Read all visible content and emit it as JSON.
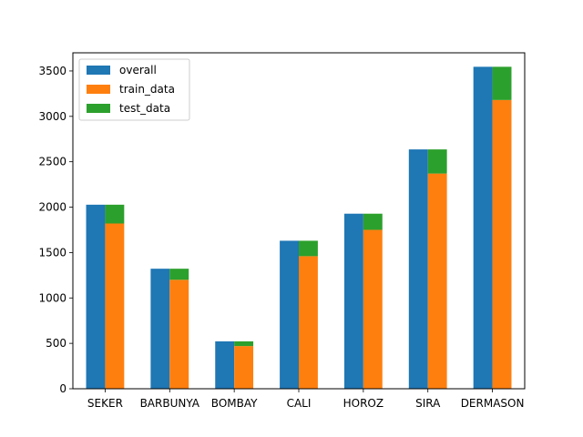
{
  "chart_data": {
    "type": "bar",
    "title": "",
    "xlabel": "",
    "ylabel": "",
    "categories": [
      "SEKER",
      "BARBUNYA",
      "BOMBAY",
      "CALI",
      "HOROZ",
      "SIRA",
      "DERMASON"
    ],
    "series": [
      {
        "name": "overall",
        "values": [
          2027,
          1322,
          522,
          1630,
          1928,
          2636,
          3546
        ]
      },
      {
        "name": "train_data",
        "values": [
          1820,
          1200,
          470,
          1460,
          1750,
          2370,
          3180
        ]
      },
      {
        "name": "test_data",
        "values": [
          207,
          122,
          52,
          170,
          178,
          266,
          366
        ]
      }
    ],
    "stacking": "train_data and test_data stacked beside overall",
    "ylim": [
      0,
      3700
    ],
    "yticks": [
      0,
      500,
      1000,
      1500,
      2000,
      2500,
      3000,
      3500
    ],
    "grid": false,
    "legend": {
      "position": "top-left",
      "entries": [
        "overall",
        "train_data",
        "test_data"
      ]
    },
    "colors": {
      "overall": "#1f77b4",
      "train_data": "#ff7f0e",
      "test_data": "#2ca02c"
    }
  }
}
